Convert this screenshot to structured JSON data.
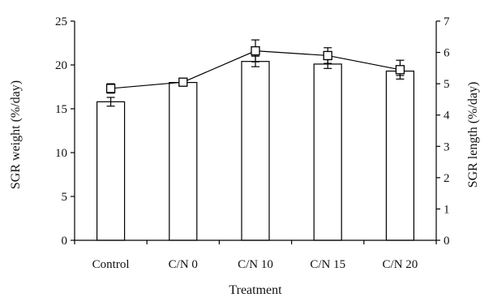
{
  "chart_data": {
    "type": "bar",
    "title": "",
    "xlabel": "Treatment",
    "ylabel": "SGR weight (%/day)",
    "y2label": "SGR length (%/day)",
    "categories": [
      "Control",
      "C/N 0",
      "C/N 10",
      "C/N 15",
      "C/N 20"
    ],
    "ylim": [
      0,
      25
    ],
    "y2lim": [
      0,
      7
    ],
    "yticks": [
      "0",
      "5",
      "10",
      "15",
      "20",
      "25"
    ],
    "y2ticks": [
      "0",
      "1",
      "2",
      "3",
      "4",
      "5",
      "6",
      "7"
    ],
    "grid": false,
    "legend": "none",
    "series": [
      {
        "kind": "bar",
        "axis": "left",
        "values": [
          15.8,
          18.0,
          20.4,
          20.1,
          19.3
        ],
        "errors": [
          0.5,
          0.4,
          0.6,
          0.5,
          0.5
        ],
        "color": "#ffffff",
        "edge_color": "#000000"
      },
      {
        "kind": "line",
        "axis": "right",
        "marker": "square",
        "values": [
          4.85,
          5.05,
          6.05,
          5.9,
          5.45
        ],
        "errors": [
          0.15,
          0.08,
          0.35,
          0.25,
          0.3
        ],
        "color": "#000000"
      }
    ]
  }
}
